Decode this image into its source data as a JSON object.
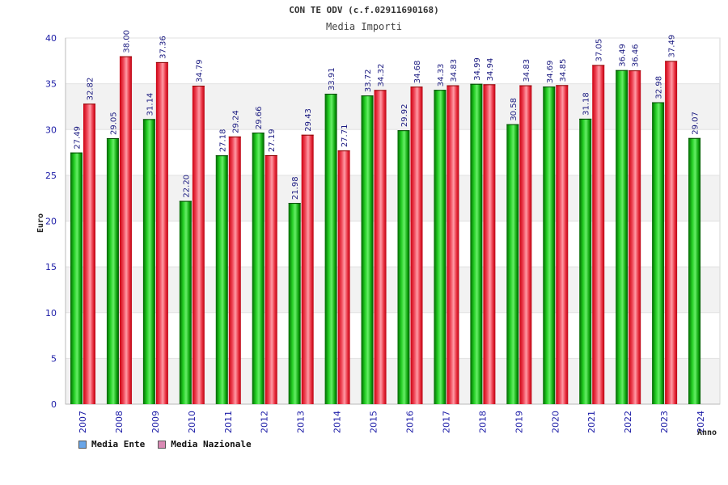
{
  "chart_data": {
    "type": "bar",
    "title": "CON TE ODV (c.f.02911690168)",
    "subtitle": "Media Importi",
    "xlabel": "Anno",
    "ylabel": "Euro",
    "ylim": [
      0,
      40
    ],
    "yticks": [
      0,
      5,
      10,
      15,
      20,
      25,
      30,
      35,
      40
    ],
    "grid": true,
    "legend_position": "bottom-left",
    "categories": [
      "2007",
      "2008",
      "2009",
      "2010",
      "2011",
      "2012",
      "2013",
      "2014",
      "2015",
      "2016",
      "2017",
      "2018",
      "2019",
      "2020",
      "2021",
      "2022",
      "2023",
      "2024"
    ],
    "series": [
      {
        "name": "Media Ente",
        "color": "#00aa00",
        "legend_color": "#6aa6e8",
        "values": [
          27.49,
          29.05,
          31.14,
          22.2,
          27.18,
          29.66,
          21.98,
          33.91,
          33.72,
          29.92,
          34.33,
          34.99,
          30.58,
          34.69,
          31.18,
          36.49,
          32.98,
          29.07
        ],
        "labels": [
          "27.49",
          "29.05",
          "31.14",
          "22.20",
          "27.18",
          "29.66",
          "21.98",
          "33.91",
          "33.72",
          "29.92",
          "34.33",
          "34.99",
          "30.58",
          "34.69",
          "31.18",
          "36.49",
          "32.98",
          "29.07"
        ]
      },
      {
        "name": "Media Nazionale",
        "color": "#e8202a",
        "legend_color": "#d98ab4",
        "values": [
          32.82,
          38.0,
          37.36,
          34.79,
          29.24,
          27.19,
          29.43,
          27.71,
          34.32,
          34.68,
          34.83,
          34.94,
          34.83,
          34.85,
          37.05,
          36.46,
          37.49,
          null
        ],
        "labels": [
          "32.82",
          "38.00",
          "37.36",
          "34.79",
          "29.24",
          "27.19",
          "29.43",
          "27.71",
          "34.32",
          "34.68",
          "34.83",
          "34.94",
          "34.83",
          "34.85",
          "37.05",
          "36.46",
          "37.49",
          ""
        ]
      }
    ]
  }
}
